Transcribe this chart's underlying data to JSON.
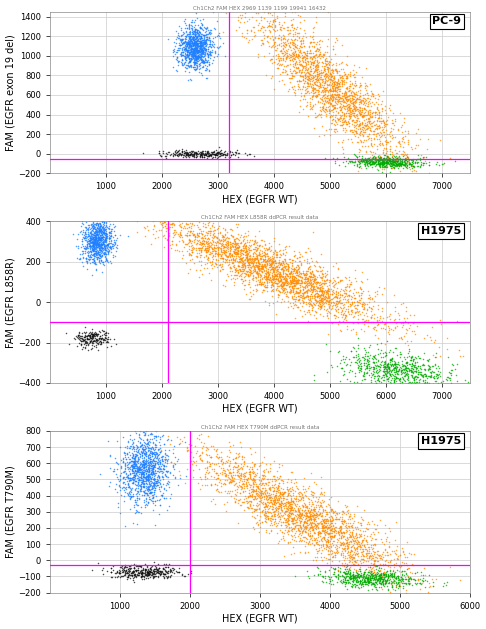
{
  "plots": [
    {
      "label": "PC-9",
      "ylabel": "FAM (EGFR exon 19 del)",
      "xlabel": "HEX (EGFR WT)",
      "xlim": [
        1,
        7500
      ],
      "ylim": [
        -200,
        1450
      ],
      "xticks": [
        1000,
        2000,
        3000,
        4000,
        5000,
        6000,
        7000
      ],
      "yticks": [
        -200,
        0,
        200,
        400,
        600,
        800,
        1000,
        1200,
        1400
      ],
      "vline": 3200,
      "hline": -50,
      "title_text": "Ch1Ch2 FAM HEX 2969 1139 1199 19941 16432",
      "clusters": {
        "blue": {
          "x_mean": 2600,
          "y_mean": 1080,
          "x_std": 160,
          "y_std": 110,
          "n": 1100,
          "corr": 0.05
        },
        "orange": {
          "x_mean": 5000,
          "y_mean": 680,
          "x_std": 680,
          "y_std": 380,
          "n": 2200,
          "corr": -0.87
        },
        "black": {
          "x_mean": 2700,
          "y_mean": 0,
          "x_std": 320,
          "y_std": 18,
          "n": 280,
          "corr": 0.0
        },
        "green": {
          "x_mean": 6000,
          "y_mean": -85,
          "x_std": 320,
          "y_std": 28,
          "n": 550,
          "corr": -0.2
        }
      }
    },
    {
      "label": "H1975",
      "ylabel": "FAM (EGFR L858R)",
      "xlabel": "HEX (EGFR WT)",
      "xlim": [
        1,
        7500
      ],
      "ylim": [
        -400,
        400
      ],
      "xticks": [
        1000,
        2000,
        3000,
        4000,
        5000,
        6000,
        7000
      ],
      "yticks": [
        -400,
        -200,
        0,
        200,
        400
      ],
      "vline": 2100,
      "hline": -100,
      "title_text": "Ch1Ch2 FAM HEX L858R ddPCR result data",
      "clusters": {
        "blue": {
          "x_mean": 850,
          "y_mean": 300,
          "x_std": 140,
          "y_std": 55,
          "n": 900,
          "corr": 0.05
        },
        "orange": {
          "x_mean": 4000,
          "y_mean": 150,
          "x_std": 1000,
          "y_std": 130,
          "n": 3000,
          "corr": -0.88
        },
        "black": {
          "x_mean": 750,
          "y_mean": -180,
          "x_std": 160,
          "y_std": 20,
          "n": 220,
          "corr": 0.0
        },
        "green": {
          "x_mean": 6200,
          "y_mean": -340,
          "x_std": 480,
          "y_std": 50,
          "n": 750,
          "corr": -0.35
        }
      }
    },
    {
      "label": "H1975",
      "ylabel": "FAM (EGFR T790M)",
      "xlabel": "HEX (EGFR WT)",
      "xlim": [
        1,
        6000
      ],
      "ylim": [
        -200,
        800
      ],
      "xticks": [
        1000,
        2000,
        3000,
        4000,
        5000,
        6000
      ],
      "yticks": [
        -200,
        -100,
        0,
        100,
        200,
        300,
        400,
        500,
        600,
        700,
        800
      ],
      "vline": 2000,
      "hline": -30,
      "title_text": "Ch1Ch2 FAM HEX T790M ddPCR result data",
      "clusters": {
        "blue": {
          "x_mean": 1350,
          "y_mean": 560,
          "x_std": 175,
          "y_std": 110,
          "n": 1200,
          "corr": 0.05
        },
        "orange": {
          "x_mean": 3600,
          "y_mean": 280,
          "x_std": 750,
          "y_std": 200,
          "n": 2500,
          "corr": -0.87
        },
        "black": {
          "x_mean": 1350,
          "y_mean": -75,
          "x_std": 250,
          "y_std": 20,
          "n": 380,
          "corr": 0.0
        },
        "green": {
          "x_mean": 4600,
          "y_mean": -110,
          "x_std": 350,
          "y_std": 28,
          "n": 650,
          "corr": -0.2
        }
      }
    }
  ],
  "colors": {
    "blue": "#1E7FFF",
    "orange": "#FF8C00",
    "black": "#111111",
    "green": "#00AA00"
  },
  "magenta": "#FF00FF",
  "bg_color": "#FFFFFF",
  "grid_color": "#CCCCCC"
}
